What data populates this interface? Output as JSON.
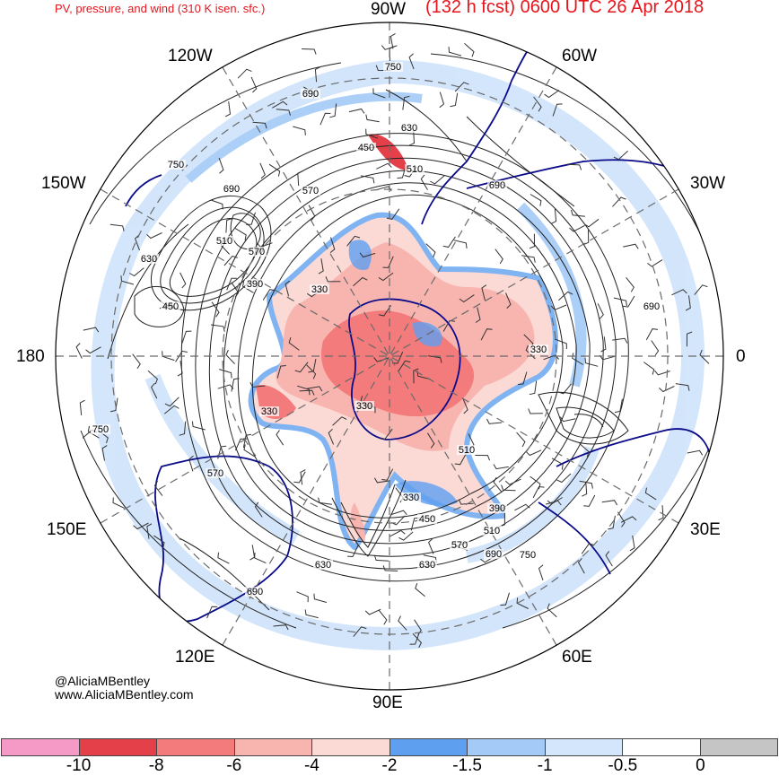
{
  "header": {
    "product": "PV, pressure, and wind (310 K isen. sfc.)",
    "valid": "(132 h fcst) 0600 UTC 26 Apr 2018"
  },
  "lon_labels": {
    "w90": "90W",
    "w60": "60W",
    "w30": "30W",
    "e0": "0",
    "e30": "30E",
    "e60": "60E",
    "e90": "90E",
    "e120": "120E",
    "e150": "150E",
    "d180": "180",
    "w150": "150W",
    "w120": "120W"
  },
  "contour_labels": [
    "750",
    "690",
    "630",
    "450",
    "510",
    "690",
    "570",
    "690",
    "750",
    "510",
    "570",
    "630",
    "390",
    "330",
    "450",
    "330",
    "750",
    "510",
    "570",
    "630",
    "690",
    "330",
    "450",
    "570",
    "510",
    "390",
    "630",
    "690",
    "750",
    "330",
    "690",
    "330"
  ],
  "credit": {
    "author": "@AliciaMBentley",
    "site": "www.AliciaMBentley.com"
  },
  "colorbar": {
    "ticks": [
      "-10",
      "-8",
      "-6",
      "-4",
      "-2",
      "-1.5",
      "-1",
      "-0.5",
      "0"
    ],
    "colors": [
      "#f59ac6",
      "#e3404a",
      "#f47b7b",
      "#f8b5b0",
      "#fbd9d5",
      "#5f9ff0",
      "#a4caf7",
      "#d4e6fc",
      "#ffffff",
      "#c5c5c5"
    ]
  },
  "map_colors": {
    "strong_pv": "#f47b7b",
    "moderate_pv": "#f8b5b0",
    "weak_pv": "#fbd9d5",
    "blue_dark": "#7fb3f2",
    "blue_light": "#cfe3fb",
    "coast": "#0b0b8a"
  }
}
